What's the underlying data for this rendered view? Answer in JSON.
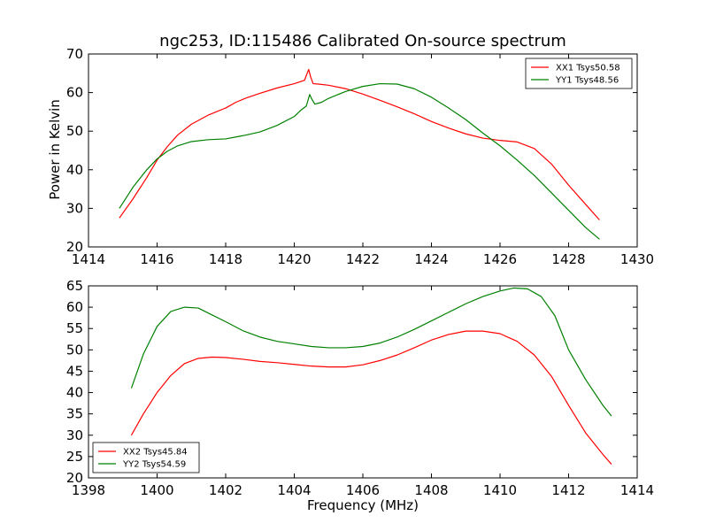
{
  "chart_data": [
    {
      "type": "line",
      "title": "ngc253, ID:115486 Calibrated On-source spectrum",
      "xlabel": "",
      "ylabel": "Power in Kelvin",
      "xlim": [
        1414,
        1430
      ],
      "ylim": [
        20,
        70
      ],
      "xticks": [
        1414,
        1416,
        1418,
        1420,
        1422,
        1424,
        1426,
        1428,
        1430
      ],
      "yticks": [
        20,
        30,
        40,
        50,
        60,
        70
      ],
      "grid": false,
      "legend_position": "top-right",
      "series": [
        {
          "name": "XX1 Tsys50.58",
          "color": "#ff0000",
          "x": [
            1414.9,
            1415.3,
            1415.7,
            1416.0,
            1416.3,
            1416.6,
            1417.0,
            1417.5,
            1418.0,
            1418.3,
            1418.6,
            1419.0,
            1419.5,
            1420.0,
            1420.3,
            1420.42,
            1420.48,
            1420.55,
            1420.7,
            1421.0,
            1421.5,
            1422.0,
            1422.5,
            1423.0,
            1423.5,
            1424.0,
            1424.5,
            1425.0,
            1425.5,
            1426.0,
            1426.5,
            1427.0,
            1427.5,
            1428.0,
            1428.5,
            1428.9
          ],
          "y": [
            27.5,
            32.5,
            38.0,
            42.5,
            46.0,
            49.0,
            51.8,
            54.2,
            56.0,
            57.5,
            58.6,
            59.8,
            61.2,
            62.3,
            63.2,
            66.0,
            64.0,
            62.3,
            62.2,
            61.9,
            61.0,
            59.6,
            58.0,
            56.3,
            54.5,
            52.5,
            50.8,
            49.3,
            48.2,
            47.6,
            47.2,
            45.5,
            41.5,
            36.0,
            31.0,
            27.0
          ]
        },
        {
          "name": "YY1 Tsys48.56",
          "color": "#008000",
          "x": [
            1414.9,
            1415.3,
            1415.7,
            1416.0,
            1416.3,
            1416.6,
            1417.0,
            1417.5,
            1418.0,
            1418.3,
            1418.6,
            1419.0,
            1419.5,
            1420.0,
            1420.2,
            1420.35,
            1420.45,
            1420.5,
            1420.6,
            1420.8,
            1421.0,
            1421.5,
            1422.0,
            1422.5,
            1423.0,
            1423.5,
            1424.0,
            1424.5,
            1425.0,
            1425.5,
            1426.0,
            1426.5,
            1427.0,
            1427.5,
            1428.0,
            1428.5,
            1428.9
          ],
          "y": [
            30.0,
            35.5,
            40.0,
            42.8,
            44.8,
            46.2,
            47.3,
            47.8,
            48.0,
            48.5,
            49.0,
            49.8,
            51.5,
            53.8,
            55.5,
            56.5,
            59.5,
            58.5,
            57.0,
            57.5,
            58.5,
            60.3,
            61.6,
            62.3,
            62.2,
            61.0,
            58.8,
            56.0,
            53.0,
            49.5,
            46.2,
            42.5,
            38.5,
            34.0,
            29.5,
            25.0,
            22.0
          ]
        }
      ]
    },
    {
      "type": "line",
      "title": "",
      "xlabel": "Frequency (MHz)",
      "ylabel": "",
      "xlim": [
        1398,
        1414
      ],
      "ylim": [
        20,
        65
      ],
      "xticks": [
        1398,
        1400,
        1402,
        1404,
        1406,
        1408,
        1410,
        1412,
        1414
      ],
      "yticks": [
        20,
        25,
        30,
        35,
        40,
        45,
        50,
        55,
        60,
        65
      ],
      "grid": false,
      "legend_position": "bottom-left",
      "series": [
        {
          "name": "XX2 Tsys45.84",
          "color": "#ff0000",
          "x": [
            1399.25,
            1399.6,
            1400.0,
            1400.4,
            1400.8,
            1401.2,
            1401.6,
            1402.0,
            1402.5,
            1403.0,
            1403.5,
            1404.0,
            1404.5,
            1405.0,
            1405.5,
            1406.0,
            1406.5,
            1407.0,
            1407.5,
            1408.0,
            1408.5,
            1409.0,
            1409.5,
            1410.0,
            1410.5,
            1411.0,
            1411.5,
            1412.0,
            1412.5,
            1413.0,
            1413.25
          ],
          "y": [
            30.0,
            35.0,
            40.0,
            44.0,
            46.8,
            48.0,
            48.3,
            48.2,
            47.8,
            47.3,
            47.0,
            46.6,
            46.2,
            46.0,
            46.0,
            46.5,
            47.5,
            48.8,
            50.5,
            52.3,
            53.6,
            54.4,
            54.4,
            53.8,
            52.0,
            48.8,
            43.8,
            37.0,
            30.5,
            25.5,
            23.2
          ]
        },
        {
          "name": "YY2 Tsys54.59",
          "color": "#008000",
          "x": [
            1399.25,
            1399.6,
            1400.0,
            1400.4,
            1400.8,
            1401.2,
            1401.6,
            1402.0,
            1402.5,
            1403.0,
            1403.5,
            1404.0,
            1404.5,
            1405.0,
            1405.5,
            1406.0,
            1406.5,
            1407.0,
            1407.5,
            1408.0,
            1408.5,
            1409.0,
            1409.5,
            1410.0,
            1410.4,
            1410.8,
            1411.2,
            1411.6,
            1412.0,
            1412.5,
            1413.0,
            1413.25
          ],
          "y": [
            41.0,
            49.0,
            55.5,
            59.0,
            60.0,
            59.8,
            58.2,
            56.6,
            54.5,
            53.0,
            52.0,
            51.4,
            50.8,
            50.5,
            50.5,
            50.8,
            51.6,
            53.0,
            54.8,
            56.8,
            58.8,
            60.8,
            62.5,
            63.8,
            64.5,
            64.3,
            62.5,
            58.0,
            50.0,
            43.0,
            37.0,
            34.5
          ]
        }
      ]
    }
  ]
}
